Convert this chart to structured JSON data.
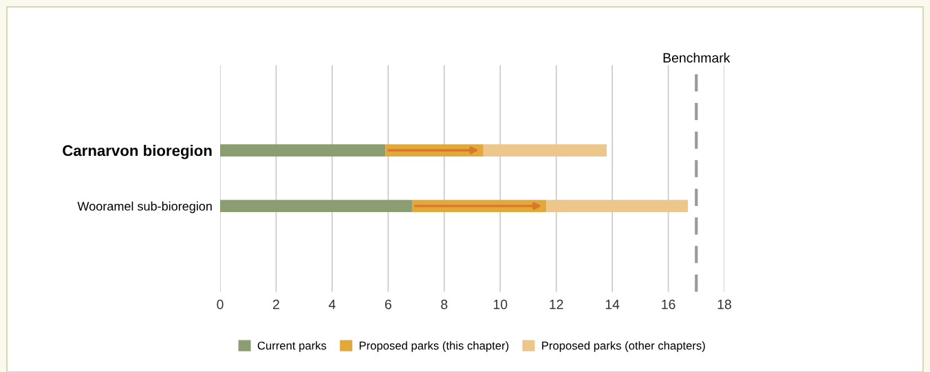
{
  "chart_data": {
    "type": "bar",
    "orientation": "horizontal",
    "stacked": true,
    "categories": [
      "Carnarvon bioregion",
      "Wooramel sub-bioregion"
    ],
    "series": [
      {
        "name": "Current parks",
        "color": "#8a9e72",
        "values": [
          5.9,
          6.85
        ]
      },
      {
        "name": "Proposed parks (this chapter)",
        "color": "#e3a83a",
        "values": [
          3.5,
          4.8
        ]
      },
      {
        "name": "Proposed parks (other chapters)",
        "color": "#ecc68a",
        "values": [
          4.4,
          5.05
        ]
      }
    ],
    "xlim": [
      0,
      18
    ],
    "xticks": [
      0,
      2,
      4,
      6,
      8,
      10,
      12,
      14,
      16,
      18
    ],
    "grid": "x",
    "legend": "bottom",
    "ref_lines": [
      {
        "axis": "x",
        "value": 17,
        "label": "Benchmark",
        "color": "#999999",
        "line_style": "dashed"
      }
    ]
  }
}
